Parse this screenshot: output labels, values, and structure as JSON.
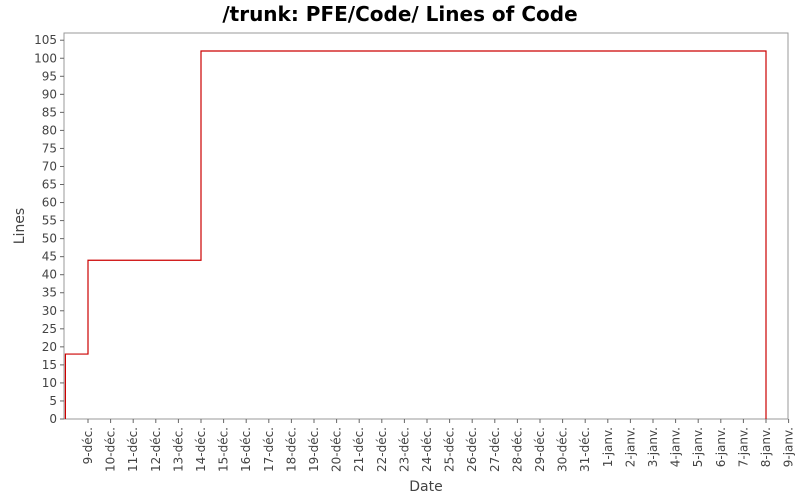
{
  "chart_data": {
    "type": "line",
    "title": "/trunk: PFE/Code/ Lines of Code",
    "xlabel": "Date",
    "ylabel": "Lines",
    "ylim": [
      0,
      107
    ],
    "yticks": [
      0,
      5,
      10,
      15,
      20,
      25,
      30,
      35,
      40,
      45,
      50,
      55,
      60,
      65,
      70,
      75,
      80,
      85,
      90,
      95,
      100,
      105
    ],
    "xticks": [
      "9-déc.",
      "10-déc.",
      "11-déc.",
      "12-déc.",
      "13-déc.",
      "14-déc.",
      "15-déc.",
      "16-déc.",
      "17-déc.",
      "18-déc.",
      "19-déc.",
      "20-déc.",
      "21-déc.",
      "22-déc.",
      "23-déc.",
      "24-déc.",
      "25-déc.",
      "26-déc.",
      "27-déc.",
      "28-déc.",
      "29-déc.",
      "30-déc.",
      "31-déc.",
      "1-janv.",
      "2-janv.",
      "3-janv.",
      "4-janv.",
      "5-janv.",
      "6-janv.",
      "7-janv.",
      "8-janv.",
      "9-janv."
    ],
    "step": true,
    "grid": false,
    "line_color": "#cc0000",
    "series": [
      {
        "points": [
          {
            "x": "8-déc.",
            "y": 0
          },
          {
            "x": "8-déc.",
            "y": 18
          },
          {
            "x": "9-déc.",
            "y": 44
          },
          {
            "x": "14-déc.",
            "y": 102
          },
          {
            "x": "8-janv.",
            "y": 0
          }
        ]
      }
    ]
  }
}
